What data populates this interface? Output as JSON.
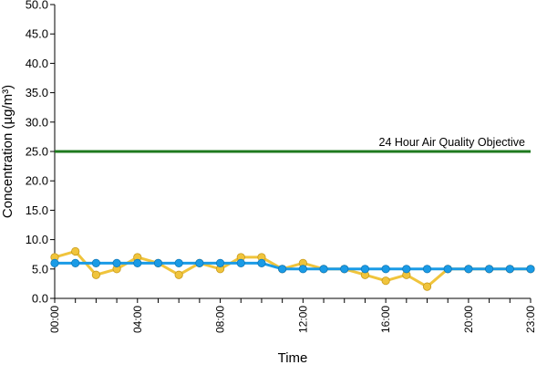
{
  "chart_data": {
    "type": "line",
    "title": "",
    "xlabel": "Time",
    "ylabel": "Concentration (µg/m³)",
    "ylim": [
      0,
      50
    ],
    "y_ticks": [
      "0.0",
      "5.0",
      "10.0",
      "15.0",
      "20.0",
      "25.0",
      "30.0",
      "35.0",
      "40.0",
      "45.0",
      "50.0"
    ],
    "x_tick_labels": [
      {
        "hour": 0,
        "label": "00:00"
      },
      {
        "hour": 4,
        "label": "04:00"
      },
      {
        "hour": 8,
        "label": "08:00"
      },
      {
        "hour": 12,
        "label": "12:00"
      },
      {
        "hour": 16,
        "label": "16:00"
      },
      {
        "hour": 20,
        "label": "20:00"
      },
      {
        "hour": 23,
        "label": "23:00"
      }
    ],
    "x": [
      0,
      1,
      2,
      3,
      4,
      5,
      6,
      7,
      8,
      9,
      10,
      11,
      12,
      13,
      14,
      15,
      16,
      17,
      18,
      19,
      20,
      21,
      22,
      23
    ],
    "objective": {
      "value": 25,
      "label": "24 Hour Air Quality Objective",
      "color": "#1e7a1e"
    },
    "series": [
      {
        "color": "#f0c43c",
        "values": [
          7,
          8,
          4,
          5,
          7,
          6,
          4,
          6,
          5,
          7,
          7,
          5,
          6,
          5,
          5,
          4,
          3,
          4,
          2,
          5,
          5,
          5,
          5,
          5
        ]
      },
      {
        "color": "#1a9be6",
        "values": [
          6,
          6,
          6,
          6,
          6,
          6,
          6,
          6,
          6,
          6,
          6,
          5,
          5,
          5,
          5,
          5,
          5,
          5,
          5,
          5,
          5,
          5,
          5,
          5
        ]
      }
    ],
    "grid": false,
    "legend": "none"
  }
}
